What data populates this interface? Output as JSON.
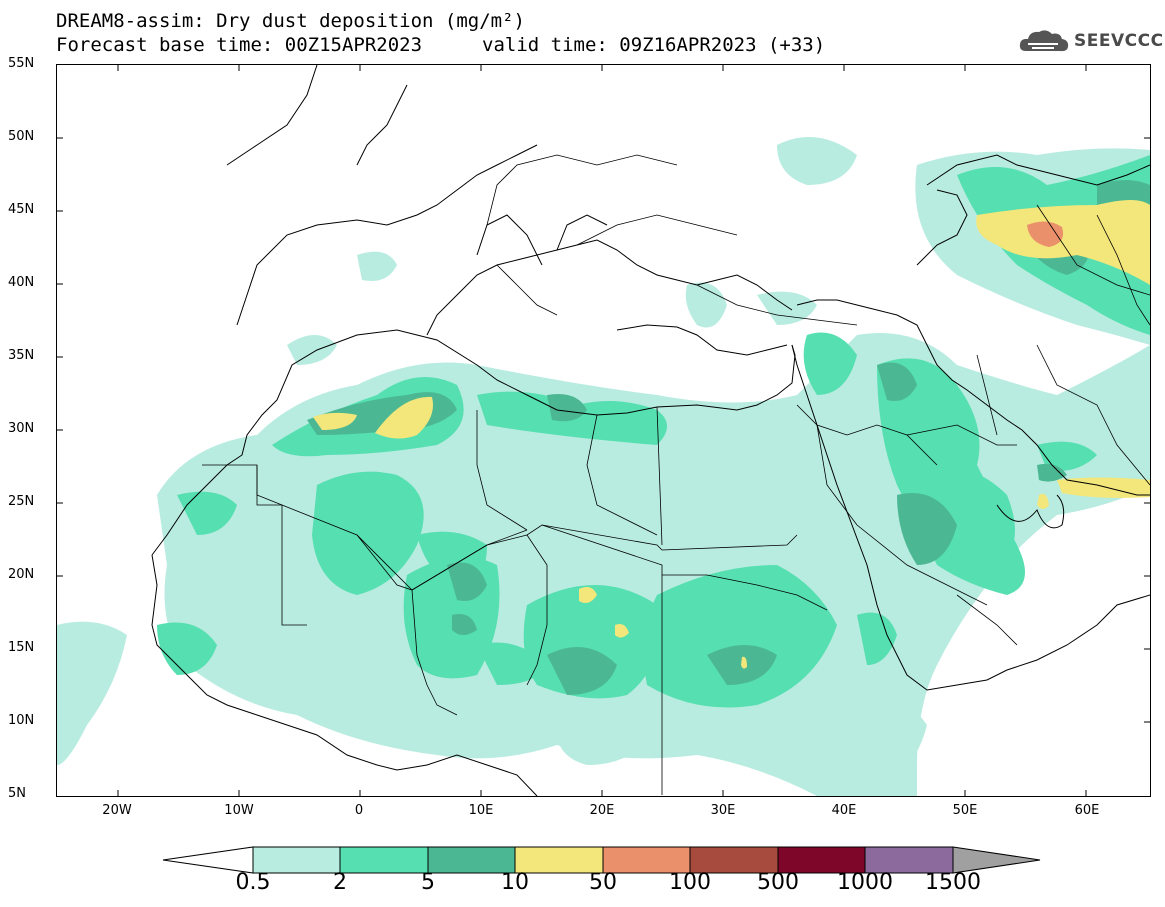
{
  "title": {
    "line1": "DREAM8-assim: Dry dust deposition (mg/m²)",
    "line2": "Forecast base time: 00Z15APR2023",
    "valid": "valid time: 09Z16APR2023 (+33)"
  },
  "logo": {
    "text": "SEEVCCC",
    "icon": "cloud-icon"
  },
  "map": {
    "lat_labels": [
      "55N",
      "50N",
      "45N",
      "40N",
      "35N",
      "30N",
      "25N",
      "20N",
      "15N",
      "10N",
      "5N"
    ],
    "lon_labels": [
      "20W",
      "10W",
      "0",
      "10E",
      "20E",
      "30E",
      "40E",
      "50E",
      "60E"
    ],
    "lat_range": [
      5,
      55
    ],
    "lon_range": [
      -25,
      65
    ]
  },
  "legend": {
    "labels": [
      "0.5",
      "2",
      "5",
      "10",
      "50",
      "100",
      "500",
      "1000",
      "1500"
    ],
    "colors": [
      "#b8ece0",
      "#56dfb0",
      "#4cb893",
      "#f3e77b",
      "#ea906b",
      "#a84b3f",
      "#7e0628",
      "#8d6a9d"
    ],
    "under_color": "#ffffff",
    "over_color": "#a0a0a0"
  },
  "colors": {
    "level1": "#b8ece0",
    "level2": "#56dfb0",
    "level3": "#4cb893",
    "level4": "#f3e77b",
    "level5": "#ea906b"
  }
}
